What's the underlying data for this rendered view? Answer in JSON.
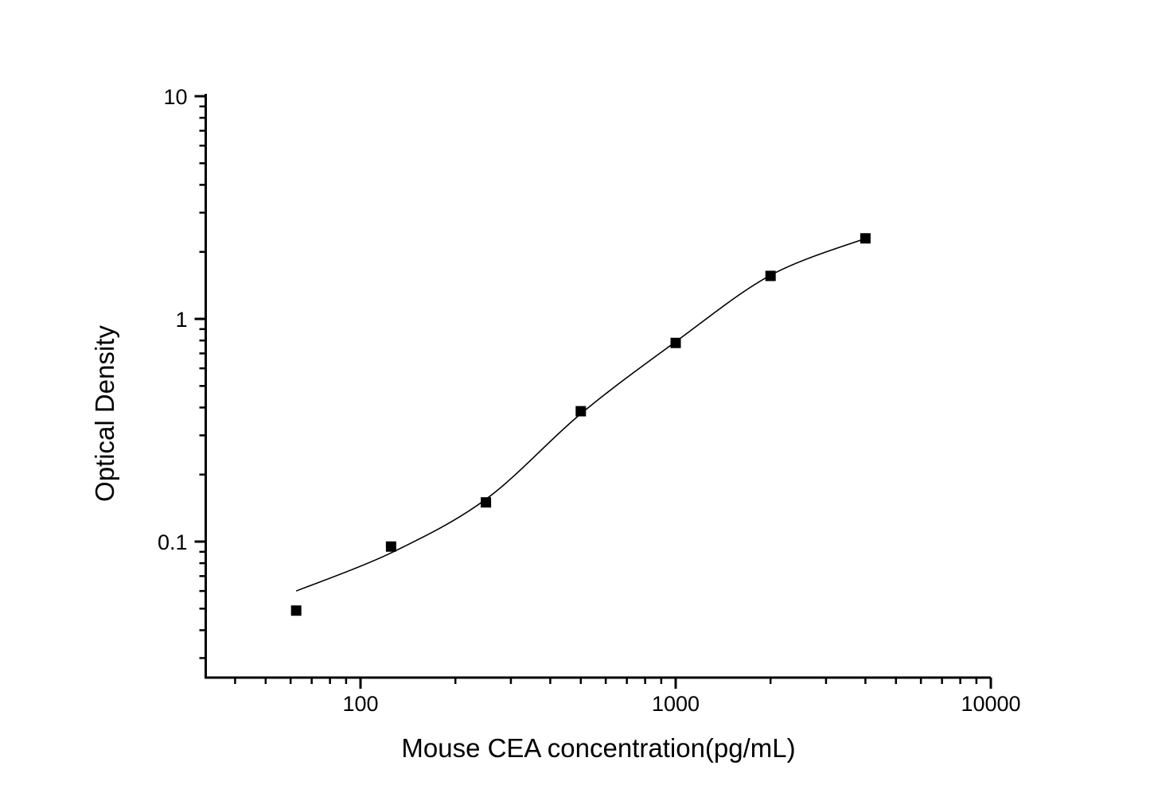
{
  "figure": {
    "background_color": "#ffffff",
    "foreground_color": "#000000",
    "title": ""
  },
  "chart_data": {
    "type": "scatter",
    "title": "",
    "xlabel": "Mouse CEA concentration(pg/mL)",
    "ylabel": "Optical Density",
    "x_scale": "log",
    "y_scale": "log",
    "xlim": [
      32.4,
      10000
    ],
    "ylim": [
      0.0245,
      10
    ],
    "grid": false,
    "legend": null,
    "x_major_ticks": [
      100,
      1000,
      10000
    ],
    "x_major_tick_labels": [
      "100",
      "1000",
      "10000"
    ],
    "y_major_ticks": [
      10,
      1,
      0.1
    ],
    "y_major_tick_labels": [
      "10",
      "1",
      "0.1"
    ],
    "series": [
      {
        "name": "standard-points",
        "marker": "filled-square",
        "marker_color": "#000000",
        "points": [
          {
            "x": 62.5,
            "y": 0.049
          },
          {
            "x": 125,
            "y": 0.095
          },
          {
            "x": 250,
            "y": 0.15
          },
          {
            "x": 500,
            "y": 0.385
          },
          {
            "x": 1000,
            "y": 0.78
          },
          {
            "x": 2000,
            "y": 1.56
          },
          {
            "x": 4000,
            "y": 2.3
          }
        ]
      },
      {
        "name": "fitted-curve",
        "line_color": "#000000",
        "points": [
          {
            "x": 62.5,
            "y": 0.06
          },
          {
            "x": 125,
            "y": 0.089
          },
          {
            "x": 250,
            "y": 0.155
          },
          {
            "x": 500,
            "y": 0.375
          },
          {
            "x": 1000,
            "y": 0.79
          },
          {
            "x": 2000,
            "y": 1.57
          },
          {
            "x": 4000,
            "y": 2.3
          }
        ]
      }
    ]
  }
}
